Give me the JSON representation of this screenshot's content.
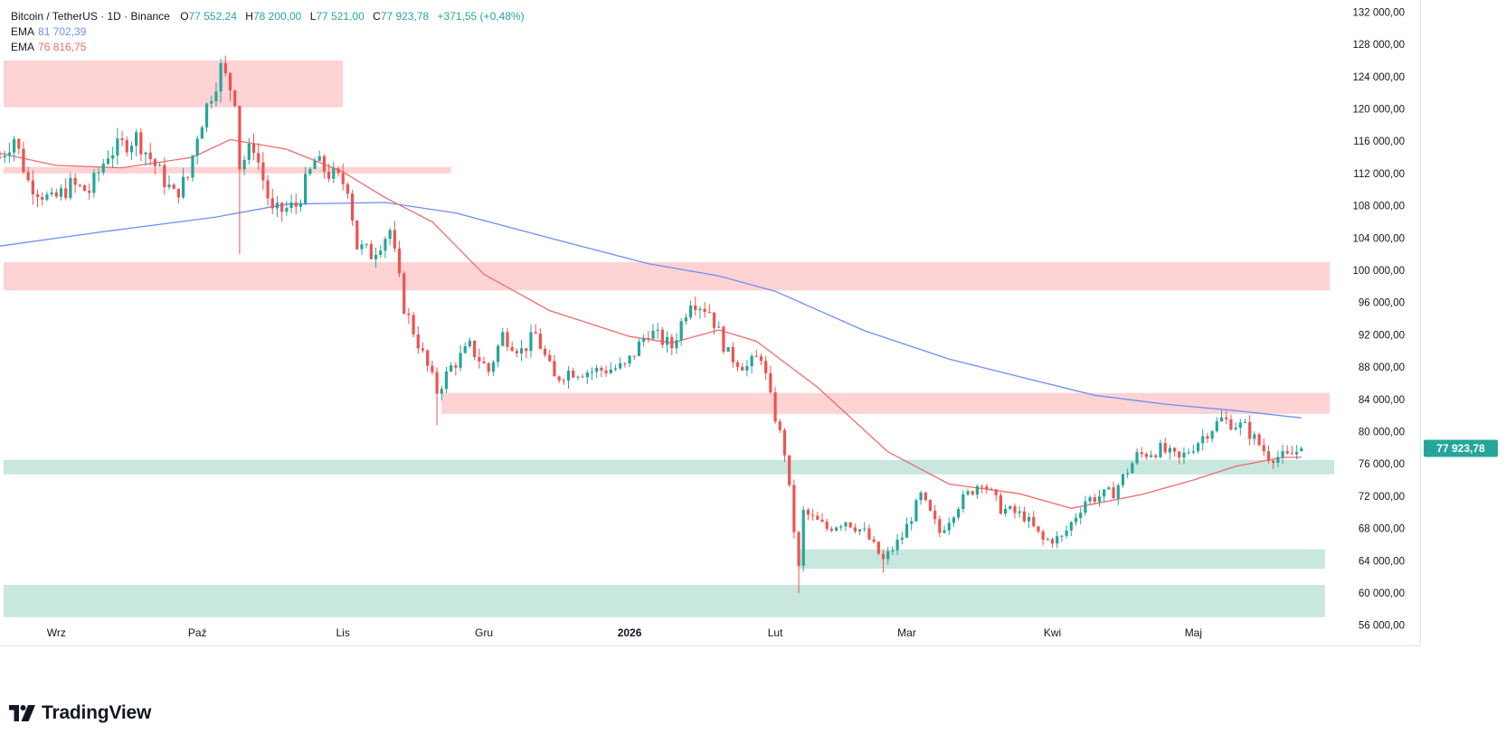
{
  "legend": {
    "title": "Bitcoin / TetherUS · 1D · Binance",
    "open_label": "O",
    "open": "77 552,24",
    "high_label": "H",
    "high": "78 200,00",
    "low_label": "L",
    "low": "77 521,00",
    "close_label": "C",
    "close": "77 923,78",
    "change": "+371,55 (+0,48%)",
    "ema1_label": "EMA",
    "ema1_value": "81 702,39",
    "ema2_label": "EMA",
    "ema2_value": "76 816,75"
  },
  "brand": {
    "name": "TradingView"
  },
  "colors": {
    "up": "#26a69a",
    "down": "#ef5350",
    "ema_long": "#6f8ef5",
    "ema_short": "#f06b6e",
    "resistance_zone": "#fdd3d4",
    "support_zone": "#c7e7df",
    "price_tag": "#26a69a"
  },
  "chart_data": {
    "type": "candlestick",
    "symbol": "Bitcoin / TetherUS",
    "timeframe": "1D",
    "exchange": "Binance",
    "y_ticks": [
      56000,
      60000,
      64000,
      68000,
      72000,
      76000,
      80000,
      84000,
      88000,
      92000,
      96000,
      100000,
      104000,
      108000,
      112000,
      116000,
      120000,
      124000,
      128000,
      132000
    ],
    "y_tick_labels": [
      "56 000,00",
      "60 000,00",
      "64 000,00",
      "68 000,00",
      "72 000,00",
      "76 000,00",
      "80 000,00",
      "84 000,00",
      "88 000,00",
      "92 000,00",
      "96 000,00",
      "100 000,00",
      "104 000,00",
      "108 000,00",
      "112 000,00",
      "116 000,00",
      "120 000,00",
      "124 000,00",
      "128 000,00",
      "132 000,00"
    ],
    "ylim": [
      53500,
      133500
    ],
    "x_range": [
      "2025-08-20",
      "2026-05-30"
    ],
    "x_ticks": [
      {
        "label": "Wrz",
        "date": "2025-09-01"
      },
      {
        "label": "Paź",
        "date": "2025-10-01"
      },
      {
        "label": "Lis",
        "date": "2025-11-01"
      },
      {
        "label": "Gru",
        "date": "2025-12-01"
      },
      {
        "label": "2026",
        "date": "2026-01-01",
        "bold": true
      },
      {
        "label": "Lut",
        "date": "2026-02-01"
      },
      {
        "label": "Mar",
        "date": "2026-03-01"
      },
      {
        "label": "Kwi",
        "date": "2026-04-01"
      },
      {
        "label": "Maj",
        "date": "2026-05-01"
      }
    ],
    "last_price": 77923.78,
    "last_price_label": "77 923,78",
    "zones": [
      {
        "kind": "resistance",
        "from": "2025-08-20",
        "to": "2025-11-01",
        "y0": 120200,
        "y1": 126000
      },
      {
        "kind": "resistance",
        "from": "2025-08-20",
        "to": "2025-11-24",
        "y0": 112000,
        "y1": 112800
      },
      {
        "kind": "resistance",
        "from": "2025-08-20",
        "to": "2026-05-30",
        "y0": 97500,
        "y1": 101000
      },
      {
        "kind": "resistance",
        "from": "2025-11-22",
        "to": "2026-05-30",
        "y0": 82200,
        "y1": 84800
      },
      {
        "kind": "support",
        "from": "2025-08-20",
        "to": "2026-05-31",
        "y0": 74700,
        "y1": 76500
      },
      {
        "kind": "support",
        "from": "2026-02-06",
        "to": "2026-05-29",
        "y0": 63000,
        "y1": 65400
      },
      {
        "kind": "support",
        "from": "2025-08-20",
        "to": "2026-05-29",
        "y0": 57000,
        "y1": 61000
      }
    ],
    "ema_long": {
      "label": "EMA",
      "points": [
        [
          "2025-08-20",
          103000
        ],
        [
          "2025-09-10",
          104700
        ],
        [
          "2025-10-05",
          106600
        ],
        [
          "2025-10-20",
          108200
        ],
        [
          "2025-11-10",
          108400
        ],
        [
          "2025-11-25",
          107100
        ],
        [
          "2025-12-15",
          104000
        ],
        [
          "2026-01-05",
          100800
        ],
        [
          "2026-01-20",
          99300
        ],
        [
          "2026-02-01",
          97400
        ],
        [
          "2026-02-20",
          92500
        ],
        [
          "2026-03-10",
          89000
        ],
        [
          "2026-03-25",
          86800
        ],
        [
          "2026-04-10",
          84500
        ],
        [
          "2026-04-25",
          83400
        ],
        [
          "2026-05-10",
          82600
        ],
        [
          "2026-05-24",
          81700
        ]
      ]
    },
    "ema_short": {
      "label": "EMA",
      "points": [
        [
          "2025-08-20",
          114500
        ],
        [
          "2025-09-01",
          113000
        ],
        [
          "2025-09-15",
          112700
        ],
        [
          "2025-09-30",
          114000
        ],
        [
          "2025-10-08",
          116200
        ],
        [
          "2025-10-20",
          115000
        ],
        [
          "2025-11-01",
          112200
        ],
        [
          "2025-11-10",
          109000
        ],
        [
          "2025-11-20",
          106000
        ],
        [
          "2025-12-01",
          99500
        ],
        [
          "2025-12-15",
          95000
        ],
        [
          "2026-01-01",
          91800
        ],
        [
          "2026-01-10",
          91000
        ],
        [
          "2026-01-20",
          92600
        ],
        [
          "2026-01-28",
          91200
        ],
        [
          "2026-02-10",
          85500
        ],
        [
          "2026-02-25",
          77500
        ],
        [
          "2026-03-10",
          73500
        ],
        [
          "2026-03-25",
          72300
        ],
        [
          "2026-04-05",
          70500
        ],
        [
          "2026-04-20",
          72200
        ],
        [
          "2026-05-01",
          74000
        ],
        [
          "2026-05-10",
          75700
        ],
        [
          "2026-05-20",
          76800
        ],
        [
          "2026-05-24",
          76816
        ]
      ]
    },
    "ohlc_path": [
      [
        "2025-08-20",
        114000
      ],
      [
        "2025-08-23",
        116500
      ],
      [
        "2025-08-26",
        111000
      ],
      [
        "2025-08-31",
        108500
      ],
      [
        "2025-09-04",
        110500
      ],
      [
        "2025-09-08",
        109800
      ],
      [
        "2025-09-12",
        114500
      ],
      [
        "2025-09-18",
        116500
      ],
      [
        "2025-09-22",
        113000
      ],
      [
        "2025-09-26",
        109300
      ],
      [
        "2025-09-29",
        111500
      ],
      [
        "2025-10-01",
        117000
      ],
      [
        "2025-10-04",
        122000
      ],
      [
        "2025-10-06",
        125000
      ],
      [
        "2025-10-09",
        121500
      ],
      [
        "2025-10-10",
        113000
      ],
      [
        "2025-10-13",
        115500
      ],
      [
        "2025-10-17",
        107000
      ],
      [
        "2025-10-22",
        108000
      ],
      [
        "2025-10-26",
        113500
      ],
      [
        "2025-10-29",
        112000
      ],
      [
        "2025-11-02",
        110500
      ],
      [
        "2025-11-04",
        103000
      ],
      [
        "2025-11-07",
        102000
      ],
      [
        "2025-11-11",
        105000
      ],
      [
        "2025-11-14",
        95500
      ],
      [
        "2025-11-21",
        85000
      ],
      [
        "2025-11-24",
        88000
      ],
      [
        "2025-11-28",
        90500
      ],
      [
        "2025-12-02",
        87500
      ],
      [
        "2025-12-05",
        92000
      ],
      [
        "2025-12-09",
        90000
      ],
      [
        "2025-12-12",
        92000
      ],
      [
        "2025-12-16",
        86500
      ],
      [
        "2025-12-19",
        87500
      ],
      [
        "2025-12-24",
        87500
      ],
      [
        "2025-12-31",
        88000
      ],
      [
        "2026-01-05",
        92500
      ],
      [
        "2026-01-10",
        90500
      ],
      [
        "2026-01-14",
        96500
      ],
      [
        "2026-01-18",
        95000
      ],
      [
        "2026-01-22",
        89500
      ],
      [
        "2026-01-26",
        88000
      ],
      [
        "2026-01-29",
        89500
      ],
      [
        "2026-01-31",
        84000
      ],
      [
        "2026-02-03",
        77500
      ],
      [
        "2026-02-06",
        63000
      ],
      [
        "2026-02-07",
        70000
      ],
      [
        "2026-02-12",
        68000
      ],
      [
        "2026-02-16",
        69000
      ],
      [
        "2026-02-20",
        67500
      ],
      [
        "2026-02-24",
        64000
      ],
      [
        "2026-02-28",
        67000
      ],
      [
        "2026-03-04",
        72000
      ],
      [
        "2026-03-08",
        67500
      ],
      [
        "2026-03-12",
        71000
      ],
      [
        "2026-03-17",
        74000
      ],
      [
        "2026-03-21",
        70500
      ],
      [
        "2026-03-26",
        69500
      ],
      [
        "2026-03-30",
        66500
      ],
      [
        "2026-04-03",
        66800
      ],
      [
        "2026-04-08",
        71500
      ],
      [
        "2026-04-14",
        72500
      ],
      [
        "2026-04-19",
        77000
      ],
      [
        "2026-04-24",
        77800
      ],
      [
        "2026-04-28",
        76500
      ],
      [
        "2026-05-04",
        80000
      ],
      [
        "2026-05-07",
        81500
      ],
      [
        "2026-05-12",
        80500
      ],
      [
        "2026-05-17",
        77000
      ],
      [
        "2026-05-21",
        76800
      ],
      [
        "2026-05-24",
        77924
      ]
    ]
  }
}
